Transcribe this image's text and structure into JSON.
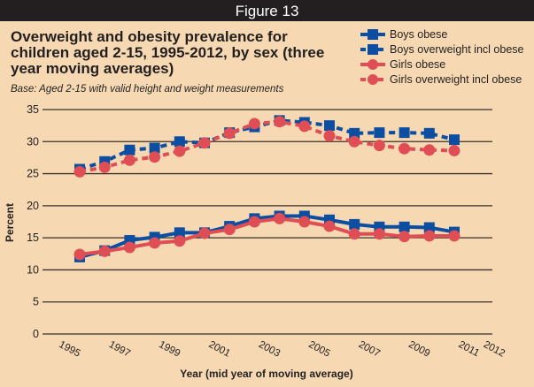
{
  "header": {
    "figure_label": "Figure 13"
  },
  "chart_data": {
    "type": "line",
    "title": "Overweight and obesity prevalence for children aged 2-15, 1995-2012, by sex (three year moving averages)",
    "subtitle": "Base: Aged 2-15 with valid height and weight measurements",
    "xlabel": "Year (mid year of moving average)",
    "ylabel": "Percent",
    "ylim": [
      0,
      35
    ],
    "yticks": [
      0,
      5,
      10,
      15,
      20,
      25,
      30,
      35
    ],
    "xlim": [
      1995,
      2012
    ],
    "xtick_labels": [
      "1995",
      "1997",
      "1999",
      "2001",
      "2003",
      "2005",
      "2007",
      "2009",
      "2011",
      "2012"
    ],
    "xtick_values": [
      1995,
      1997,
      1999,
      2001,
      2003,
      2005,
      2007,
      2009,
      2011,
      2012
    ],
    "grid": true,
    "legend_position": "top-right",
    "x": [
      1996,
      1997,
      1998,
      1999,
      2000,
      2001,
      2002,
      2003,
      2004,
      2005,
      2006,
      2007,
      2008,
      2009,
      2010,
      2011
    ],
    "series": [
      {
        "name": "Boys obese",
        "color": "#0b4ea2",
        "marker": "square",
        "dashed": false,
        "values": [
          12.0,
          13.0,
          14.6,
          15.1,
          15.8,
          15.8,
          16.8,
          18.0,
          18.4,
          18.4,
          17.8,
          17.1,
          16.7,
          16.7,
          16.6,
          15.9
        ]
      },
      {
        "name": "Boys overweight incl obese",
        "color": "#0b4ea2",
        "marker": "square",
        "dashed": true,
        "values": [
          25.7,
          26.9,
          28.7,
          29.0,
          30.0,
          29.8,
          31.4,
          32.3,
          33.3,
          33.0,
          32.5,
          31.3,
          31.4,
          31.4,
          31.3,
          30.3
        ]
      },
      {
        "name": "Girls obese",
        "color": "#e04e55",
        "marker": "circle",
        "dashed": false,
        "values": [
          12.4,
          12.9,
          13.5,
          14.2,
          14.5,
          15.7,
          16.3,
          17.5,
          18.0,
          17.5,
          16.8,
          15.6,
          15.6,
          15.2,
          15.3,
          15.3
        ]
      },
      {
        "name": "Girls overweight incl obese",
        "color": "#e04e55",
        "marker": "circle",
        "dashed": true,
        "values": [
          25.3,
          26.0,
          27.1,
          27.6,
          28.5,
          29.8,
          31.3,
          32.8,
          33.1,
          32.4,
          30.9,
          30.0,
          29.4,
          28.9,
          28.7,
          28.6
        ]
      }
    ]
  }
}
